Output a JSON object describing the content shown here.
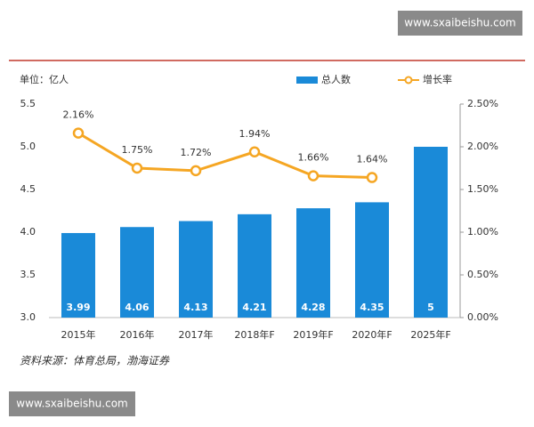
{
  "watermark_top": "www.sxaibeishu.com",
  "watermark_bottom": "www.sxaibeishu.com",
  "source": "资料来源：体育总局，渤海证券",
  "chart_data": {
    "type": "bar",
    "y_label": "单位：亿人",
    "categories": [
      "2015年",
      "2016年",
      "2017年",
      "2018年F",
      "2019年F",
      "2020年F",
      "2025年F"
    ],
    "series": [
      {
        "name": "总人数",
        "type": "bar",
        "color": "#1a8ad8",
        "values": [
          3.99,
          4.06,
          4.13,
          4.21,
          4.28,
          4.35,
          5
        ]
      },
      {
        "name": "增长率",
        "type": "line",
        "axis": "y2",
        "color": "#f5a623",
        "values": [
          2.16,
          1.75,
          1.72,
          1.94,
          1.66,
          1.64,
          null
        ],
        "value_labels": [
          "2.16%",
          "1.75%",
          "1.72%",
          "1.94%",
          "1.66%",
          "1.64%",
          null
        ]
      }
    ],
    "ylim": [
      3,
      5.5
    ],
    "yticks": [
      {
        "value": 3,
        "label": "3.0"
      },
      3.5,
      {
        "value": 4,
        "label": "4.0"
      },
      4.5,
      {
        "value": 5,
        "label": "5.0"
      },
      5.5
    ],
    "y2lim": [
      0,
      2.5
    ],
    "y2ticks": [
      {
        "value": 0,
        "label": "0.00%"
      },
      {
        "value": 0.5,
        "label": "0.50%"
      },
      {
        "value": 1,
        "label": "1.00%"
      },
      {
        "value": 1.5,
        "label": "1.50%"
      },
      {
        "value": 2,
        "label": "2.00%"
      },
      {
        "value": 2.5,
        "label": "2.50%"
      }
    ]
  }
}
